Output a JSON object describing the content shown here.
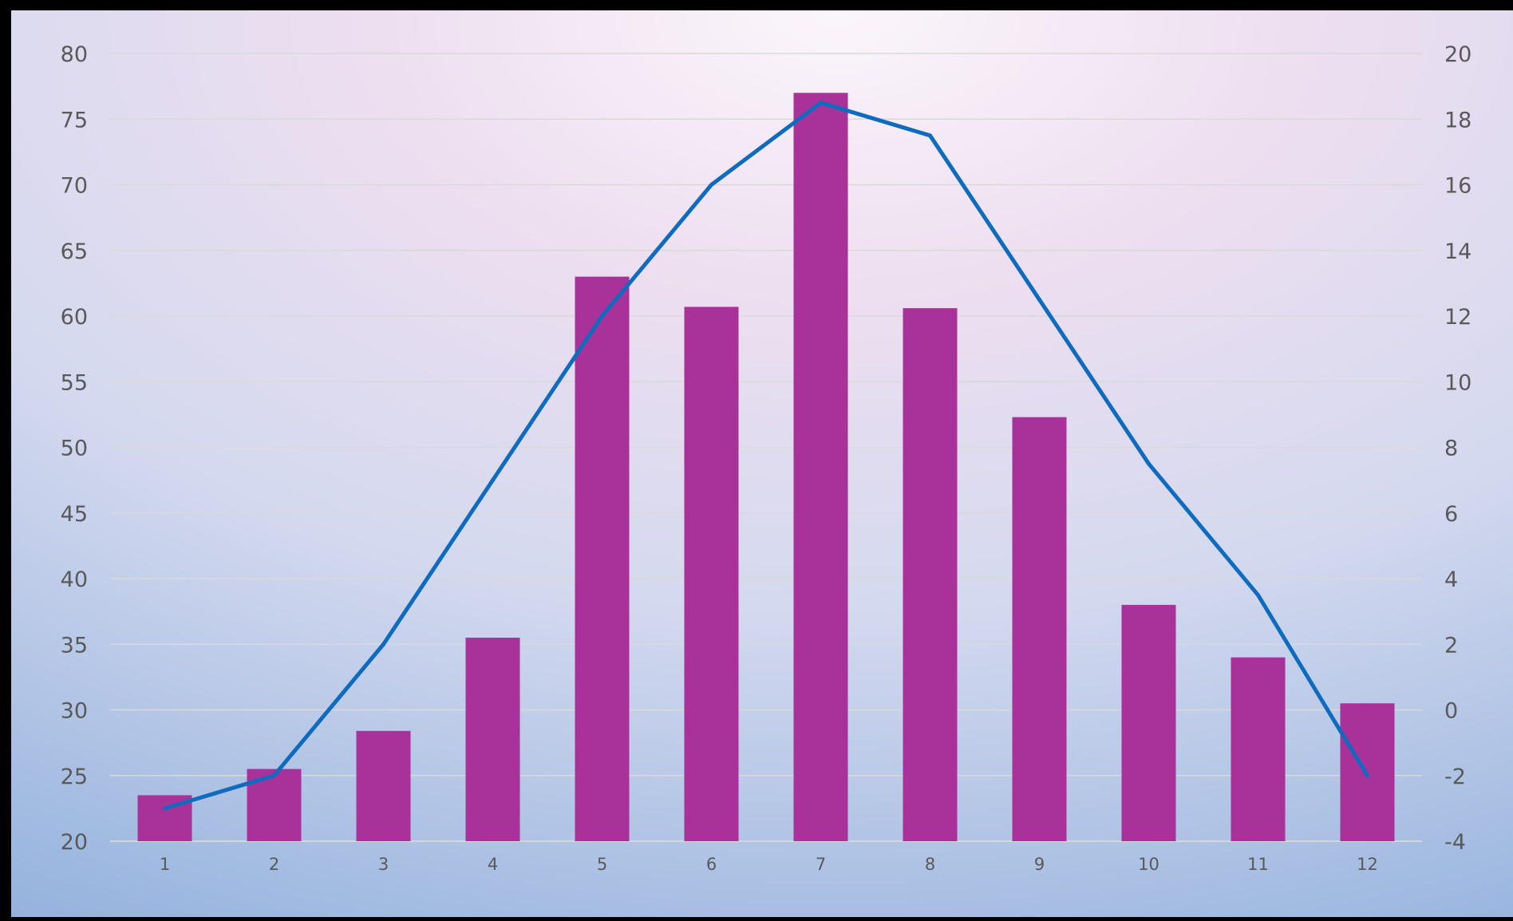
{
  "chart_data": {
    "type": "bar",
    "categories": [
      "1",
      "2",
      "3",
      "4",
      "5",
      "6",
      "7",
      "8",
      "9",
      "10",
      "11",
      "12"
    ],
    "series": [
      {
        "type": "bar",
        "axis": "left",
        "color": "#A9319A",
        "values": [
          23.5,
          25.5,
          28.4,
          35.5,
          63.0,
          60.7,
          77.0,
          60.6,
          52.3,
          38.0,
          34.0,
          30.5
        ]
      },
      {
        "type": "line",
        "axis": "right",
        "color": "#0F6BBD",
        "values": [
          -3.0,
          -2.0,
          2.0,
          7.0,
          12.0,
          16.0,
          18.5,
          17.5,
          12.5,
          7.5,
          3.5,
          -2.0
        ]
      }
    ],
    "y_left": {
      "min": 20,
      "max": 80,
      "step": 5
    },
    "y_right": {
      "min": -4,
      "max": 20,
      "step": 2
    },
    "title": "",
    "xlabel": "",
    "ylabel": "",
    "grid": true,
    "legend": "none"
  },
  "background": {
    "top": "#F3E3F3",
    "middle": "#DADDF0",
    "bottom": "#8FB0DC",
    "frame": "#000000"
  }
}
